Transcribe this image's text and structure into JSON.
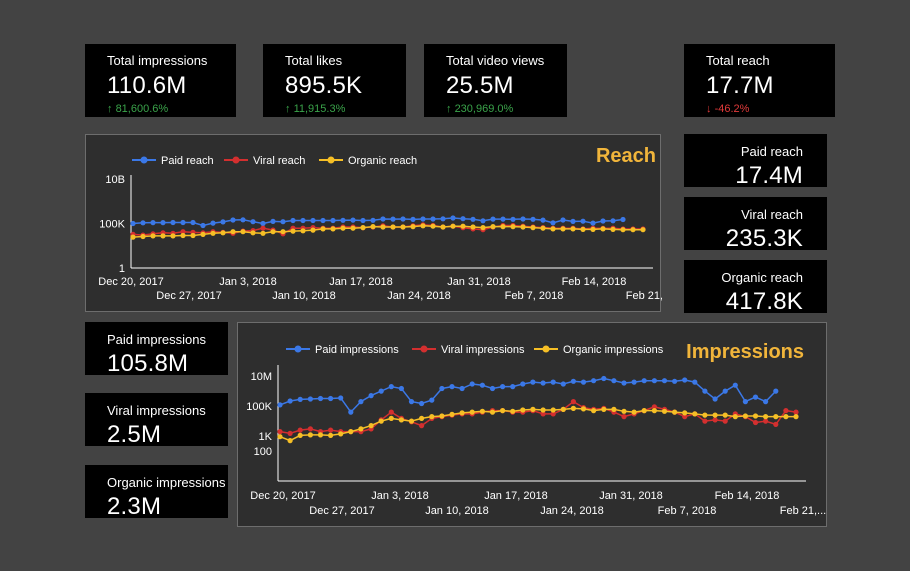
{
  "kpis": {
    "total_impressions": {
      "label": "Total impressions",
      "value": "110.6M",
      "change": "81,600.6%",
      "dir": "up"
    },
    "total_likes": {
      "label": "Total likes",
      "value": "895.5K",
      "change": "11,915.3%",
      "dir": "up"
    },
    "total_video_views": {
      "label": "Total video views",
      "value": "25.5M",
      "change": "230,969.0%",
      "dir": "up"
    },
    "total_reach": {
      "label": "Total reach",
      "value": "17.7M",
      "change": "-46.2%",
      "dir": "down"
    },
    "paid_reach": {
      "label": "Paid reach",
      "value": "17.4M"
    },
    "viral_reach": {
      "label": "Viral reach",
      "value": "235.3K"
    },
    "organic_reach": {
      "label": "Organic reach",
      "value": "417.8K"
    },
    "paid_impressions": {
      "label": "Paid impressions",
      "value": "105.8M"
    },
    "viral_impressions": {
      "label": "Viral impressions",
      "value": "2.5M"
    },
    "organic_impressions": {
      "label": "Organic impressions",
      "value": "2.3M"
    }
  },
  "arrows": {
    "up": "↑",
    "down": "↓"
  },
  "colors": {
    "background": "#434343",
    "card": "#000000",
    "panel": "#2e2e2e",
    "title": "#f1b53b",
    "paid": "#3b78e7",
    "viral": "#d32f2f",
    "organic": "#f6bf26",
    "up": "#3aa34a",
    "down": "#e03a3a"
  },
  "chart_data": [
    {
      "type": "line",
      "title": "Reach",
      "y_scale": "log",
      "y_ticks": [
        "1",
        "100K",
        "10B"
      ],
      "x_ticks_row1": [
        "Dec 20, 2017",
        "Jan 3, 2018",
        "Jan 17, 2018",
        "Jan 31, 2018",
        "Feb 14, 2018"
      ],
      "x_ticks_row2": [
        "Dec 27, 2017",
        "Jan 10, 2018",
        "Jan 24, 2018",
        "Feb 7, 2018",
        "Feb 21,..."
      ],
      "series": [
        {
          "name": "Paid reach",
          "color": "#3b78e7",
          "values": [
            100000,
            120000,
            125000,
            125000,
            130000,
            130000,
            130000,
            60000,
            110000,
            150000,
            250000,
            260000,
            160000,
            100000,
            170000,
            160000,
            220000,
            220000,
            220000,
            220000,
            220000,
            230000,
            240000,
            220000,
            230000,
            320000,
            310000,
            320000,
            290000,
            320000,
            320000,
            340000,
            420000,
            350000,
            300000,
            200000,
            310000,
            310000,
            300000,
            320000,
            300000,
            240000,
            120000,
            250000,
            170000,
            180000,
            110000,
            190000,
            200000,
            280000,
            null,
            null
          ]
        },
        {
          "name": "Viral reach",
          "color": "#d32f2f",
          "values": [
            6000,
            5000,
            7000,
            9000,
            8000,
            12000,
            10000,
            9000,
            12000,
            10000,
            8000,
            14000,
            16000,
            30000,
            18000,
            7000,
            30000,
            30000,
            35000,
            30000,
            30000,
            40000,
            40000,
            35000,
            40000,
            55000,
            40000,
            40000,
            55000,
            70000,
            60000,
            40000,
            50000,
            35000,
            25000,
            20000,
            40000,
            60000,
            60000,
            50000,
            40000,
            35000,
            30000,
            30000,
            30000,
            25000,
            30000,
            28000,
            30000,
            24000,
            24000,
            24000
          ]
        },
        {
          "name": "Organic reach",
          "color": "#f6bf26",
          "values": [
            3000,
            3500,
            4000,
            4000,
            4000,
            4500,
            4500,
            6000,
            8000,
            9000,
            12000,
            12000,
            9000,
            8000,
            12000,
            12000,
            14000,
            15000,
            18000,
            25000,
            25000,
            30000,
            30000,
            35000,
            45000,
            40000,
            40000,
            40000,
            45000,
            55000,
            50000,
            40000,
            50000,
            50000,
            40000,
            35000,
            45000,
            45000,
            45000,
            40000,
            35000,
            30000,
            25000,
            25000,
            25000,
            22000,
            22000,
            25000,
            22000,
            20000,
            20000,
            20000
          ]
        }
      ]
    },
    {
      "type": "line",
      "title": "Impressions",
      "y_scale": "log",
      "y_ticks": [
        "100",
        "1K",
        "100K",
        "10M"
      ],
      "x_ticks_row1": [
        "Dec 20, 2017",
        "Jan 3, 2018",
        "Jan 17, 2018",
        "Jan 31, 2018",
        "Feb 14, 2018"
      ],
      "x_ticks_row2": [
        "Dec 27, 2017",
        "Jan 10, 2018",
        "Jan 24, 2018",
        "Feb 7, 2018",
        "Feb 21,..."
      ],
      "series": [
        {
          "name": "Paid impressions",
          "color": "#3b78e7",
          "values": [
            120000,
            220000,
            280000,
            300000,
            320000,
            320000,
            350000,
            40000,
            200000,
            500000,
            1000000,
            2000000,
            1500000,
            200000,
            150000,
            250000,
            1500000,
            2000000,
            1500000,
            3000000,
            2500000,
            1500000,
            2000000,
            2000000,
            3000000,
            4000000,
            3500000,
            4000000,
            3000000,
            4500000,
            4000000,
            5000000,
            7000000,
            5000000,
            3500000,
            4000000,
            5000000,
            5000000,
            5000000,
            4500000,
            5500000,
            4000000,
            1000000,
            300000,
            1000000,
            2500000,
            200000,
            400000,
            200000,
            1000000,
            null,
            null
          ]
        },
        {
          "name": "Viral impressions",
          "color": "#d32f2f",
          "values": [
            2000,
            1500,
            2500,
            3000,
            2000,
            2500,
            2000,
            2000,
            2000,
            3000,
            12000,
            40000,
            15000,
            9000,
            5000,
            15000,
            20000,
            25000,
            30000,
            30000,
            40000,
            50000,
            50000,
            40000,
            40000,
            50000,
            30000,
            30000,
            60000,
            200000,
            80000,
            60000,
            70000,
            40000,
            20000,
            30000,
            50000,
            90000,
            60000,
            40000,
            20000,
            30000,
            10000,
            12000,
            10000,
            30000,
            20000,
            8000,
            10000,
            6000,
            50000,
            40000
          ]
        },
        {
          "name": "Organic impressions",
          "color": "#f6bf26",
          "values": [
            900,
            500,
            1100,
            1200,
            1200,
            1100,
            1400,
            2000,
            3000,
            5000,
            10000,
            15000,
            12000,
            10000,
            15000,
            20000,
            22000,
            28000,
            35000,
            40000,
            45000,
            40000,
            50000,
            45000,
            55000,
            60000,
            55000,
            55000,
            60000,
            70000,
            65000,
            50000,
            60000,
            60000,
            45000,
            40000,
            50000,
            50000,
            45000,
            40000,
            35000,
            30000,
            25000,
            25000,
            25000,
            20000,
            22000,
            22000,
            20000,
            20000,
            20000,
            20000
          ]
        }
      ]
    }
  ]
}
